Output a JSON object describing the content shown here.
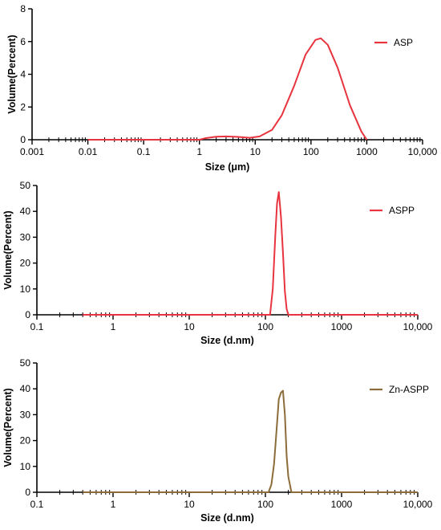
{
  "chart_data": [
    {
      "type": "line",
      "xscale": "log",
      "xlim": [
        0.001,
        10000
      ],
      "ylim": [
        0,
        8
      ],
      "xlabel": "Size (μm)",
      "ylabel": "Volume(Percent)",
      "xtick_labels": [
        "0.001",
        "0.01",
        "0.1",
        "1",
        "10",
        "100",
        "1000",
        "10,000"
      ],
      "yticks": [
        0,
        2,
        4,
        6,
        8
      ],
      "legend_position": "top-right",
      "grid": false,
      "series": [
        {
          "name": "ASP",
          "color": "#e8343f",
          "x": [
            0.01,
            0.1,
            1,
            1.3,
            2,
            3,
            5,
            8,
            12,
            20,
            30,
            50,
            80,
            120,
            150,
            200,
            300,
            500,
            800,
            1000
          ],
          "y": [
            0,
            0,
            0,
            0.1,
            0.18,
            0.2,
            0.17,
            0.12,
            0.2,
            0.6,
            1.5,
            3.3,
            5.2,
            6.1,
            6.2,
            5.8,
            4.4,
            2.1,
            0.5,
            0
          ]
        }
      ]
    },
    {
      "type": "line",
      "xscale": "log",
      "xlim": [
        0.1,
        10000
      ],
      "ylim": [
        0,
        50
      ],
      "xlabel": "Size (d.nm)",
      "ylabel": "Volume(Percent)",
      "xtick_labels": [
        "0.1",
        "1",
        "10",
        "100",
        "1000",
        "10,000"
      ],
      "yticks": [
        0,
        10,
        20,
        30,
        40,
        50
      ],
      "legend_position": "top-right",
      "grid": false,
      "series": [
        {
          "name": "ASPP",
          "color": "#e8343f",
          "x": [
            0.4,
            100,
            115,
            125,
            135,
            142,
            150,
            160,
            170,
            180,
            190,
            200,
            10000
          ],
          "y": [
            0,
            0,
            0,
            10,
            31,
            43,
            47.5,
            38,
            24,
            9,
            2.3,
            0,
            0
          ]
        }
      ]
    },
    {
      "type": "line",
      "xscale": "log",
      "xlim": [
        0.1,
        10000
      ],
      "ylim": [
        0,
        50
      ],
      "xlabel": "Size (d.nm)",
      "ylabel": "Volume(Percent)",
      "xtick_labels": [
        "0.1",
        "1",
        "10",
        "100",
        "1000",
        "10,000"
      ],
      "yticks": [
        0,
        10,
        20,
        30,
        40,
        50
      ],
      "legend_position": "top-right",
      "grid": false,
      "series": [
        {
          "name": "Zn-ASPP",
          "color": "#8b6c3a",
          "x": [
            0.4,
            100,
            110,
            120,
            130,
            140,
            150,
            160,
            170,
            180,
            190,
            200,
            220,
            10000
          ],
          "y": [
            0,
            0,
            0,
            3,
            11,
            24,
            36,
            38.5,
            39.3,
            30,
            14,
            6,
            0,
            0
          ]
        }
      ]
    }
  ]
}
